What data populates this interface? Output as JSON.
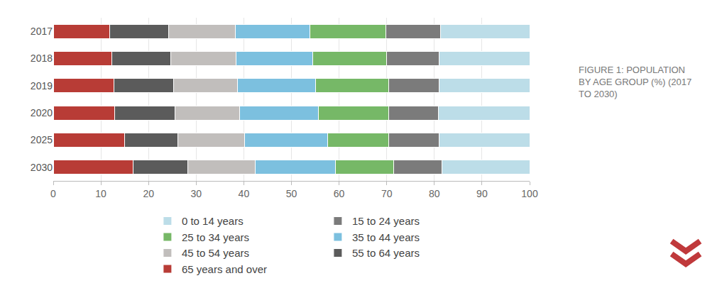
{
  "chart_data": {
    "type": "bar",
    "title": "FIGURE 1: POPULATION BY AGE GROUP (%) (2017 TO 2030)",
    "orientation": "horizontal",
    "stacked": true,
    "grid": true,
    "legend": "bottom",
    "categories": [
      "2017",
      "2018",
      "2019",
      "2020",
      "2025",
      "2030"
    ],
    "series": [
      {
        "name": "65 years and over",
        "color": "#b83c36",
        "values": [
          11.9,
          12.3,
          12.7,
          12.9,
          15.0,
          16.8
        ]
      },
      {
        "name": "55 to 64 years",
        "color": "#5b5b5b",
        "values": [
          12.3,
          12.3,
          12.6,
          12.6,
          11.2,
          11.5
        ]
      },
      {
        "name": "45 to 54 years",
        "color": "#c1bebc",
        "values": [
          14.0,
          13.8,
          13.4,
          13.6,
          14.0,
          14.1
        ]
      },
      {
        "name": "35 to 44 years",
        "color": "#7cc0df",
        "values": [
          15.7,
          16.1,
          16.4,
          16.6,
          17.4,
          16.9
        ]
      },
      {
        "name": "25 to 34 years",
        "color": "#76b867",
        "values": [
          15.9,
          15.5,
          15.3,
          14.7,
          12.8,
          12.1
        ]
      },
      {
        "name": "15 to 24 years",
        "color": "#7b7b7b",
        "values": [
          11.5,
          11.0,
          10.6,
          10.4,
          10.6,
          10.2
        ]
      },
      {
        "name": "0 to 14 years",
        "color": "#bcdde8",
        "values": [
          18.7,
          19.0,
          19.0,
          19.2,
          19.0,
          18.4
        ]
      }
    ],
    "xlim": [
      0,
      100
    ],
    "xticks": [
      0,
      10,
      20,
      30,
      40,
      50,
      60,
      70,
      80,
      90,
      100
    ]
  }
}
